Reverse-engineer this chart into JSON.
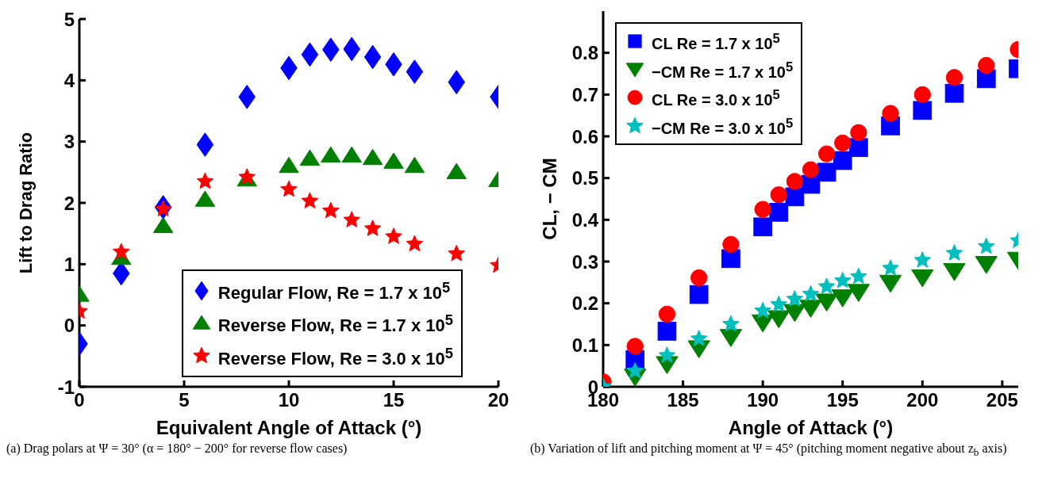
{
  "chart_data": [
    {
      "type": "scatter",
      "xlabel": "Equivalent Angle of Attack (°)",
      "ylabel": "Lift to Drag Ratio",
      "xlim": [
        0,
        20
      ],
      "ylim": [
        -1,
        5
      ],
      "xticks": [
        0,
        5,
        10,
        15,
        20
      ],
      "yticks": [
        -1,
        0,
        1,
        2,
        3,
        4,
        5
      ],
      "grid": false,
      "legend": "bottom right",
      "x": [
        0,
        2,
        4,
        6,
        8,
        10,
        11,
        12,
        13,
        14,
        15,
        16,
        18,
        20
      ],
      "series": [
        {
          "name": "Regular Flow, Re = 1.7 x 10$^{5}$",
          "color": "#0000ff",
          "marker": "diamond",
          "values": [
            -0.3,
            0.85,
            1.93,
            2.95,
            3.73,
            4.2,
            4.42,
            4.5,
            4.51,
            4.38,
            4.26,
            4.14,
            3.97,
            3.73
          ]
        },
        {
          "name": "Reverse Flow, Re = 1.7 x 10$^{5}$",
          "color": "#008000",
          "marker": "triangle",
          "values": [
            0.5,
            1.1,
            1.62,
            2.05,
            2.38,
            2.6,
            2.72,
            2.77,
            2.77,
            2.73,
            2.67,
            2.6,
            2.5,
            2.37
          ]
        },
        {
          "name": "Reverse Flow, Re = 3.0 x 10$^{5}$",
          "color": "#ff0000",
          "marker": "star",
          "values": [
            0.23,
            1.2,
            1.9,
            2.35,
            2.42,
            2.22,
            2.03,
            1.87,
            1.72,
            1.58,
            1.45,
            1.33,
            1.17,
            0.98
          ]
        }
      ],
      "annotations": [
        "(a) Drag polars at Ψ = 30° (α = 180° − 200° for reverse flow cases)"
      ]
    },
    {
      "type": "scatter",
      "xlabel": "Angle of Attack (°)",
      "ylabel": "CL, − CM",
      "xlim": [
        180,
        206
      ],
      "ylim": [
        0,
        0.9
      ],
      "xticks": [
        180,
        185,
        190,
        195,
        200,
        205
      ],
      "yticks": [
        0,
        0.1,
        0.2,
        0.3,
        0.4,
        0.5,
        0.6,
        0.7,
        0.8
      ],
      "grid": false,
      "legend": "top left",
      "x": [
        180,
        182,
        184,
        186,
        188,
        190,
        191,
        192,
        193,
        194,
        195,
        196,
        198,
        200,
        202,
        204,
        206
      ],
      "series": [
        {
          "name": "CL Re = 1.7 x 10$^{5}$",
          "color": "#0000ff",
          "marker": "square",
          "values": [
            null,
            0.065,
            0.133,
            0.221,
            0.307,
            0.383,
            0.418,
            0.455,
            0.485,
            0.514,
            0.542,
            0.573,
            0.625,
            0.662,
            0.703,
            0.738,
            0.762
          ]
        },
        {
          "name": "−CM Re = 1.7 x 10$^{5}$",
          "color": "#008000",
          "marker": "triangle-down",
          "values": [
            null,
            0.025,
            0.055,
            0.093,
            0.12,
            0.155,
            0.165,
            0.18,
            0.19,
            0.205,
            0.215,
            0.228,
            0.25,
            0.263,
            0.278,
            0.295,
            0.305
          ]
        },
        {
          "name": "CL Re = 3.0 x 10$^{5}$",
          "color": "#ff0000",
          "marker": "circle",
          "values": [
            0.012,
            0.097,
            0.174,
            0.261,
            0.341,
            0.425,
            0.46,
            0.492,
            0.52,
            0.558,
            0.584,
            0.609,
            0.655,
            0.7,
            0.741,
            0.77,
            0.808
          ]
        },
        {
          "name": "−CM Re = 3.0 x 10$^{5}$",
          "color": "#00bfbf",
          "marker": "star",
          "values": [
            0.0,
            0.038,
            0.075,
            0.115,
            0.15,
            0.182,
            0.197,
            0.21,
            0.222,
            0.24,
            0.254,
            0.264,
            0.284,
            0.303,
            0.32,
            0.336,
            0.35
          ]
        }
      ],
      "annotations": [
        "(b) Variation of lift and pitching moment at Ψ = 45° (pitching moment negative about z$_{b}$ axis)"
      ]
    }
  ]
}
